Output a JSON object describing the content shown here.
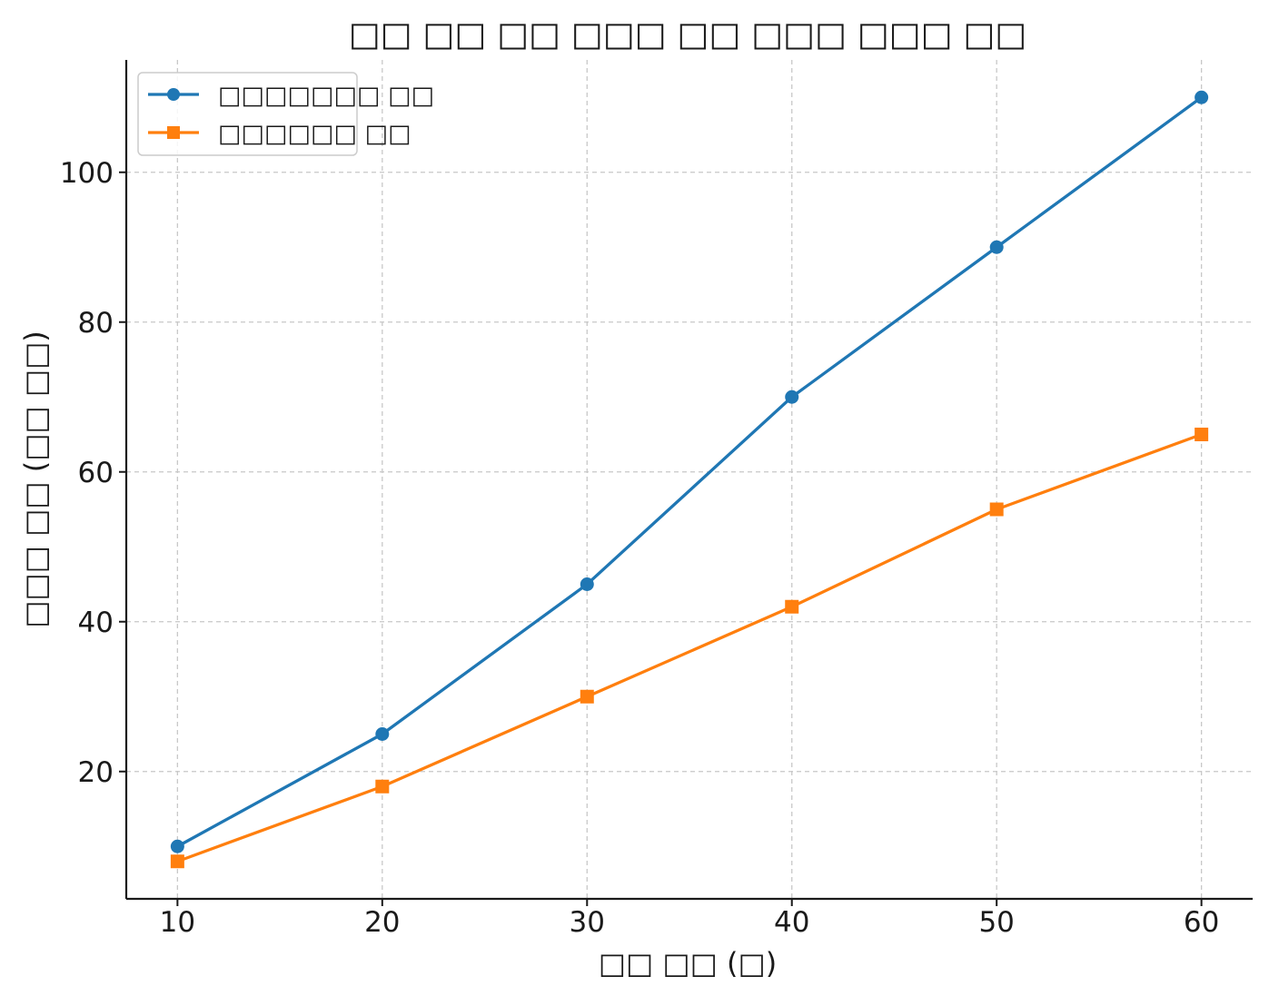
{
  "chart_data": {
    "type": "line",
    "title": "□□ □□ □□ □□□ □□ □□□ □□□ □□",
    "xlabel": "□□ □□ (□)",
    "ylabel": "□□□ □□ (□□ □□)",
    "x": [
      10,
      20,
      30,
      40,
      50,
      60
    ],
    "xlim": [
      7.5,
      62.5
    ],
    "ylim": [
      3,
      115
    ],
    "xticks": [
      "10",
      "20",
      "30",
      "40",
      "50",
      "60"
    ],
    "yticks": [
      "20",
      "40",
      "60",
      "80",
      "100"
    ],
    "grid": true,
    "legend_position": "top-left",
    "series": [
      {
        "name": "□□□□□□□ □□",
        "values": [
          10,
          25,
          45,
          70,
          90,
          110
        ],
        "color": "#1f77b4",
        "marker": "circle"
      },
      {
        "name": "□□□□□□ □□",
        "values": [
          8,
          18,
          30,
          42,
          55,
          65
        ],
        "color": "#ff7f0e",
        "marker": "square"
      }
    ]
  }
}
